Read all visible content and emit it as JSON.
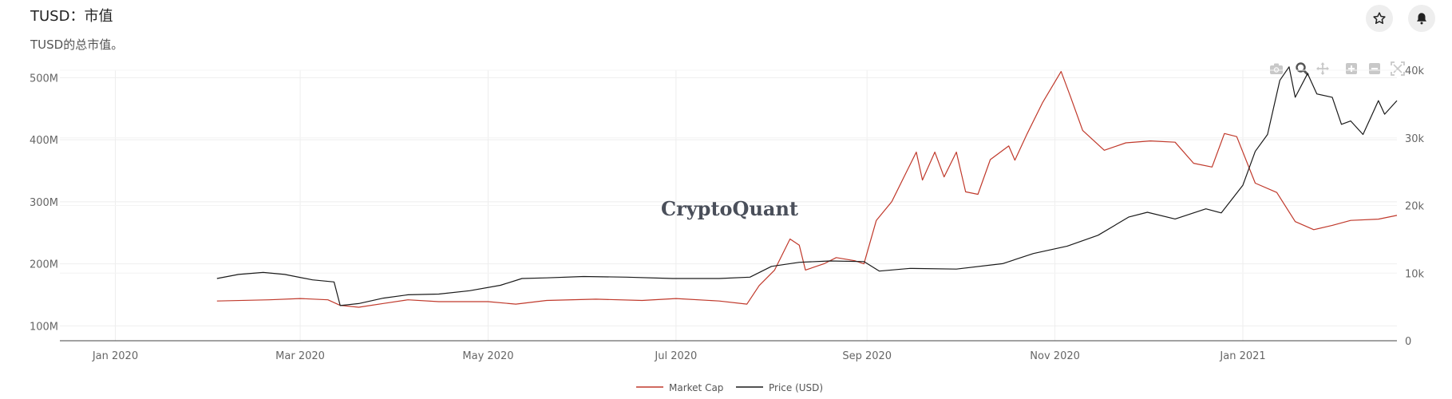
{
  "header": {
    "title": "TUSD：市值",
    "subtitle": "TUSD的总市值。",
    "star_icon": "star-icon",
    "bell_icon": "bell-icon"
  },
  "modebar": {
    "icons": [
      "camera-icon",
      "zoom-icon",
      "pan-icon",
      "zoom-in-icon",
      "zoom-out-icon",
      "autoscale-icon"
    ]
  },
  "watermark": "CryptoQuant",
  "colors": {
    "market_cap": "#c0392b",
    "price": "#1a1a1a",
    "grid": "#eeeeee"
  },
  "chart_data": {
    "type": "line",
    "title": "",
    "xlabel": "",
    "ylabel": "",
    "x_ticks": [
      "Jan 2020",
      "Mar 2020",
      "May 2020",
      "Jul 2020",
      "Sep 2020",
      "Nov 2020",
      "Jan 2021"
    ],
    "y_left_ticks": [
      "100M",
      "200M",
      "300M",
      "400M",
      "500M"
    ],
    "y_right_ticks": [
      "0",
      "10k",
      "20k",
      "30k",
      "40k"
    ],
    "xlim": [
      "2019-12-14",
      "2021-02-20"
    ],
    "ylim_left": [
      76,
      512
    ],
    "ylim_right": [
      0,
      40000
    ],
    "grid": true,
    "legend_position": "bottom-center",
    "series": [
      {
        "name": "Market Cap",
        "axis": "left",
        "points": [
          [
            "2020-02-03",
            140
          ],
          [
            "2020-02-20",
            142
          ],
          [
            "2020-03-01",
            144
          ],
          [
            "2020-03-10",
            142
          ],
          [
            "2020-03-14",
            133
          ],
          [
            "2020-03-20",
            130
          ],
          [
            "2020-03-28",
            136
          ],
          [
            "2020-04-05",
            142
          ],
          [
            "2020-04-15",
            139
          ],
          [
            "2020-05-01",
            139
          ],
          [
            "2020-05-10",
            135
          ],
          [
            "2020-05-20",
            141
          ],
          [
            "2020-06-05",
            143
          ],
          [
            "2020-06-20",
            141
          ],
          [
            "2020-07-01",
            144
          ],
          [
            "2020-07-15",
            140
          ],
          [
            "2020-07-24",
            135
          ],
          [
            "2020-07-28",
            165
          ],
          [
            "2020-08-02",
            190
          ],
          [
            "2020-08-07",
            240
          ],
          [
            "2020-08-10",
            230
          ],
          [
            "2020-08-12",
            190
          ],
          [
            "2020-08-18",
            200
          ],
          [
            "2020-08-22",
            210
          ],
          [
            "2020-08-28",
            205
          ],
          [
            "2020-08-31",
            200
          ],
          [
            "2020-09-04",
            270
          ],
          [
            "2020-09-09",
            300
          ],
          [
            "2020-09-14",
            350
          ],
          [
            "2020-09-17",
            380
          ],
          [
            "2020-09-19",
            335
          ],
          [
            "2020-09-23",
            380
          ],
          [
            "2020-09-26",
            340
          ],
          [
            "2020-09-30",
            380
          ],
          [
            "2020-10-03",
            316
          ],
          [
            "2020-10-07",
            312
          ],
          [
            "2020-10-11",
            368
          ],
          [
            "2020-10-17",
            390
          ],
          [
            "2020-10-19",
            367
          ],
          [
            "2020-10-23",
            410
          ],
          [
            "2020-10-28",
            460
          ],
          [
            "2020-11-03",
            510
          ],
          [
            "2020-11-06",
            470
          ],
          [
            "2020-11-10",
            415
          ],
          [
            "2020-11-17",
            383
          ],
          [
            "2020-11-24",
            395
          ],
          [
            "2020-12-02",
            398
          ],
          [
            "2020-12-10",
            396
          ],
          [
            "2020-12-16",
            362
          ],
          [
            "2020-12-22",
            356
          ],
          [
            "2020-12-26",
            410
          ],
          [
            "2020-12-30",
            405
          ],
          [
            "2021-01-05",
            330
          ],
          [
            "2021-01-12",
            315
          ],
          [
            "2021-01-18",
            268
          ],
          [
            "2021-01-24",
            255
          ],
          [
            "2021-01-30",
            262
          ],
          [
            "2021-02-05",
            270
          ],
          [
            "2021-02-14",
            272
          ],
          [
            "2021-02-20",
            278
          ]
        ]
      },
      {
        "name": "Price (USD)",
        "axis": "right",
        "points": [
          [
            "2020-02-03",
            9200
          ],
          [
            "2020-02-10",
            9800
          ],
          [
            "2020-02-18",
            10100
          ],
          [
            "2020-02-25",
            9800
          ],
          [
            "2020-03-05",
            9000
          ],
          [
            "2020-03-12",
            8700
          ],
          [
            "2020-03-14",
            5200
          ],
          [
            "2020-03-20",
            5500
          ],
          [
            "2020-03-28",
            6300
          ],
          [
            "2020-04-05",
            6800
          ],
          [
            "2020-04-15",
            6900
          ],
          [
            "2020-04-25",
            7400
          ],
          [
            "2020-05-05",
            8200
          ],
          [
            "2020-05-12",
            9200
          ],
          [
            "2020-05-20",
            9300
          ],
          [
            "2020-06-01",
            9500
          ],
          [
            "2020-06-15",
            9400
          ],
          [
            "2020-06-30",
            9200
          ],
          [
            "2020-07-15",
            9200
          ],
          [
            "2020-07-25",
            9400
          ],
          [
            "2020-08-01",
            11000
          ],
          [
            "2020-08-10",
            11600
          ],
          [
            "2020-08-20",
            11800
          ],
          [
            "2020-08-31",
            11700
          ],
          [
            "2020-09-05",
            10300
          ],
          [
            "2020-09-15",
            10700
          ],
          [
            "2020-09-30",
            10600
          ],
          [
            "2020-10-15",
            11400
          ],
          [
            "2020-10-25",
            12900
          ],
          [
            "2020-11-05",
            14000
          ],
          [
            "2020-11-15",
            15600
          ],
          [
            "2020-11-25",
            18300
          ],
          [
            "2020-12-01",
            19000
          ],
          [
            "2020-12-10",
            18000
          ],
          [
            "2020-12-20",
            19500
          ],
          [
            "2020-12-25",
            18900
          ],
          [
            "2021-01-01",
            23000
          ],
          [
            "2021-01-05",
            28000
          ],
          [
            "2021-01-09",
            30500
          ],
          [
            "2021-01-13",
            38500
          ],
          [
            "2021-01-16",
            40500
          ],
          [
            "2021-01-18",
            36000
          ],
          [
            "2021-01-22",
            39500
          ],
          [
            "2021-01-25",
            36500
          ],
          [
            "2021-01-30",
            36000
          ],
          [
            "2021-02-02",
            32000
          ],
          [
            "2021-02-05",
            32500
          ],
          [
            "2021-02-09",
            30500
          ],
          [
            "2021-02-12",
            33500
          ],
          [
            "2021-02-14",
            35500
          ],
          [
            "2021-02-16",
            33500
          ],
          [
            "2021-02-18",
            34500
          ],
          [
            "2021-02-20",
            35500
          ]
        ]
      }
    ]
  }
}
